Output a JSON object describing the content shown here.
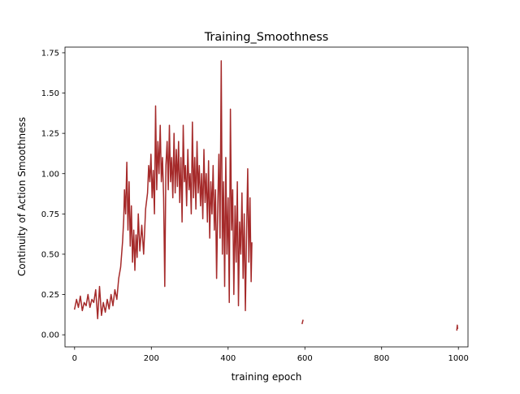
{
  "chart_data": {
    "type": "line",
    "title": "Training_Smoothness",
    "xlabel": "training epoch",
    "ylabel": "Continuity of Action Smoothness",
    "xlim": [
      -25,
      1025
    ],
    "ylim": [
      -0.075,
      1.785
    ],
    "xticks": [
      0,
      200,
      400,
      600,
      800,
      1000
    ],
    "xtick_labels": [
      "0",
      "200",
      "400",
      "600",
      "800",
      "1000"
    ],
    "yticks": [
      0.0,
      0.25,
      0.5,
      0.75,
      1.0,
      1.25,
      1.5,
      1.75
    ],
    "ytick_labels": [
      "0.00",
      "0.25",
      "0.50",
      "0.75",
      "1.00",
      "1.25",
      "1.50",
      "1.75"
    ],
    "grid": false,
    "series": [
      {
        "color": "#a52a2a",
        "segments": [
          {
            "x": [
              0,
              5,
              10,
              15,
              20,
              25,
              30,
              35,
              40,
              45,
              50,
              55,
              60,
              65,
              70,
              75,
              80,
              85,
              90,
              95,
              100,
              105,
              110,
              115,
              120,
              125,
              128,
              130,
              133,
              136,
              139,
              142,
              145,
              148,
              151,
              154,
              157,
              160,
              163,
              166,
              170,
              175,
              180,
              185,
              190,
              193,
              196,
              199,
              202,
              205,
              208,
              211,
              214,
              217,
              220,
              223,
              226,
              229,
              232,
              235,
              238,
              241,
              244,
              247,
              250,
              253,
              256,
              259,
              262,
              265,
              268,
              271,
              274,
              277,
              280,
              283,
              286,
              289,
              292,
              295,
              298,
              301,
              304,
              307,
              310,
              313,
              316,
              319,
              322,
              325,
              328,
              331,
              334,
              337,
              340,
              343,
              346,
              349,
              352,
              355,
              358,
              361,
              364,
              367,
              370,
              373,
              376,
              379,
              382,
              385,
              388,
              391,
              394,
              397,
              400,
              403,
              406,
              409,
              412,
              415,
              418,
              421,
              424,
              427,
              430,
              433,
              436,
              439,
              442,
              445,
              448,
              451,
              454,
              457,
              460,
              462
            ],
            "y": [
              0.16,
              0.22,
              0.17,
              0.24,
              0.15,
              0.2,
              0.18,
              0.25,
              0.17,
              0.22,
              0.2,
              0.28,
              0.1,
              0.3,
              0.12,
              0.2,
              0.14,
              0.22,
              0.16,
              0.25,
              0.18,
              0.28,
              0.22,
              0.35,
              0.42,
              0.58,
              0.72,
              0.9,
              0.75,
              1.07,
              0.65,
              0.95,
              0.55,
              0.8,
              0.45,
              0.65,
              0.4,
              0.62,
              0.48,
              0.75,
              0.52,
              0.68,
              0.5,
              0.78,
              0.88,
              1.05,
              0.95,
              1.12,
              0.85,
              1.02,
              0.75,
              1.42,
              0.9,
              1.2,
              1.0,
              1.3,
              0.95,
              1.1,
              0.85,
              0.3,
              1.05,
              1.2,
              0.9,
              1.3,
              0.95,
              1.1,
              0.85,
              1.25,
              0.88,
              1.15,
              0.92,
              1.2,
              0.82,
              1.1,
              0.7,
              1.3,
              0.95,
              1.05,
              0.8,
              1.15,
              0.9,
              1.0,
              0.75,
              1.32,
              0.85,
              1.1,
              0.78,
              1.2,
              0.88,
              1.05,
              0.8,
              1.0,
              0.72,
              1.15,
              0.82,
              1.0,
              0.7,
              1.08,
              0.6,
              0.95,
              0.75,
              1.05,
              0.65,
              0.9,
              0.35,
              0.8,
              1.12,
              0.6,
              1.7,
              0.5,
              0.95,
              0.3,
              1.1,
              0.5,
              0.85,
              0.2,
              1.4,
              0.65,
              0.9,
              0.25,
              0.8,
              0.45,
              0.95,
              0.18,
              0.7,
              0.5,
              0.88,
              0.35,
              0.75,
              0.15,
              0.6,
              1.03,
              0.45,
              0.85,
              0.33,
              0.57
            ]
          },
          {
            "x": [
              593,
              595
            ],
            "y": [
              0.07,
              0.09
            ]
          },
          {
            "x": [
              996,
              997,
              998
            ],
            "y": [
              0.03,
              0.06,
              0.04
            ]
          }
        ]
      }
    ]
  }
}
